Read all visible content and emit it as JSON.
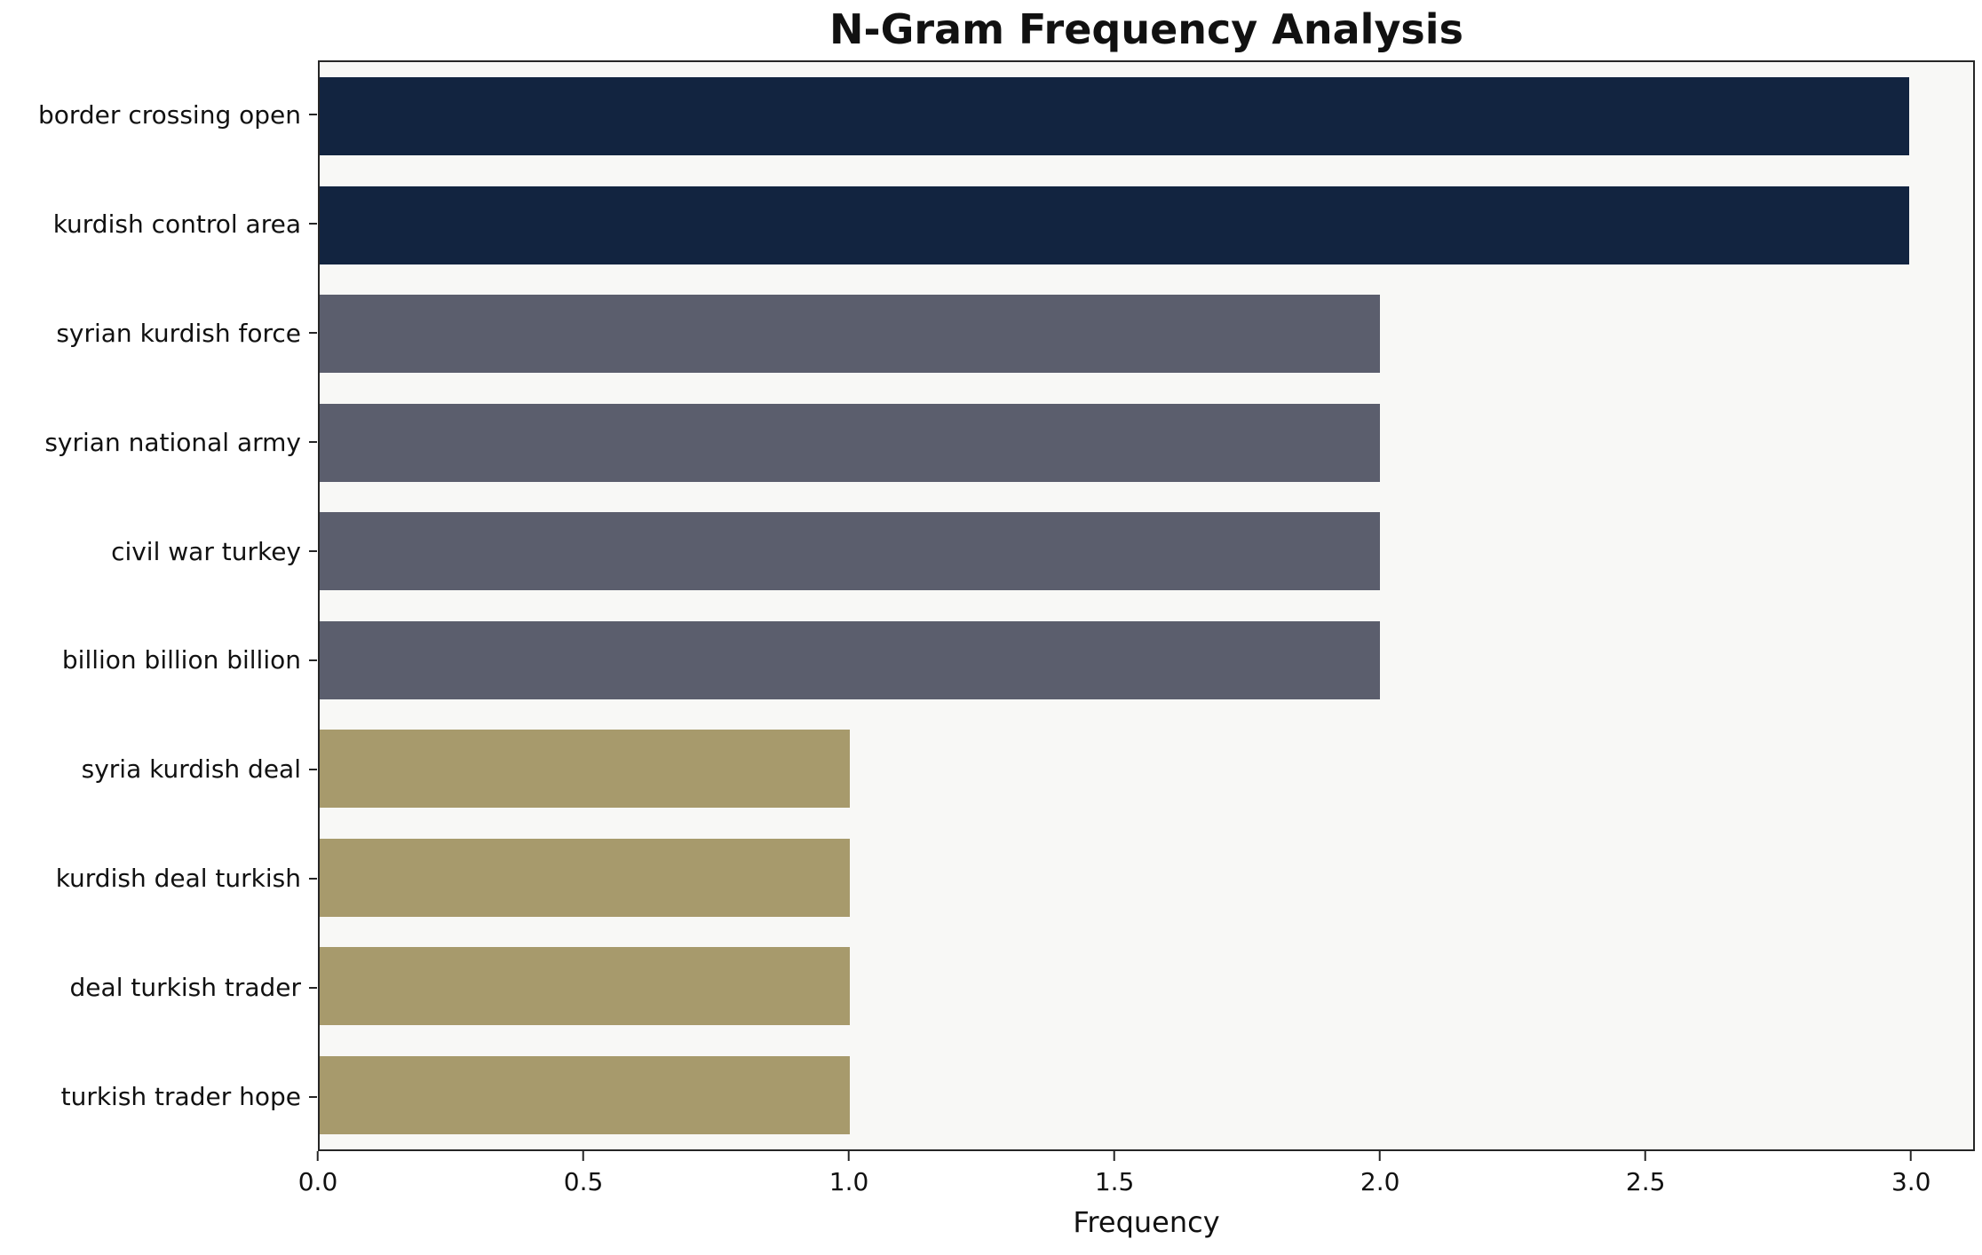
{
  "chart_data": {
    "type": "bar",
    "orientation": "horizontal",
    "title": "N-Gram Frequency Analysis",
    "xlabel": "Frequency",
    "ylabel": "",
    "categories": [
      "border crossing open",
      "kurdish control area",
      "syrian kurdish force",
      "syrian national army",
      "civil war turkey",
      "billion billion billion",
      "syria kurdish deal",
      "kurdish deal turkish",
      "deal turkish trader",
      "turkish trader hope"
    ],
    "values": [
      3,
      3,
      2,
      2,
      2,
      2,
      1,
      1,
      1,
      1
    ],
    "bar_colors": [
      "#122440",
      "#122440",
      "#5b5e6d",
      "#5b5e6d",
      "#5b5e6d",
      "#5b5e6d",
      "#a79a6c",
      "#a79a6c",
      "#a79a6c",
      "#a79a6c"
    ],
    "xticks": [
      0,
      0.5,
      1,
      1.5,
      2,
      2.5,
      3
    ],
    "xtick_labels": [
      "0.0",
      "0.5",
      "1.0",
      "1.5",
      "2.0",
      "2.5",
      "3.0"
    ],
    "xlim": [
      0,
      3.12
    ],
    "grid": false,
    "legend": null,
    "colors": {
      "freq_3_bar": "#122440",
      "freq_2_bar": "#5b5e6d",
      "freq_1_bar": "#a79a6c",
      "plot_background": "#f8f8f6",
      "figure_background": "#ffffff",
      "axis": "#262626",
      "text": "#111111"
    }
  }
}
